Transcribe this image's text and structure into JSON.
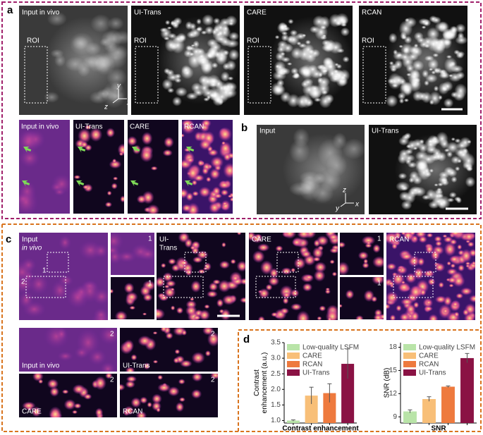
{
  "panel_a": {
    "letter": "a",
    "top_labels": [
      "Input in vivo",
      "UI-Trans",
      "CARE",
      "RCAN"
    ],
    "roi": [
      "ROI",
      "ROI",
      "ROI",
      "ROI"
    ],
    "axes": [
      "y",
      "z",
      "x"
    ],
    "bottom_labels": [
      "Input in vivo",
      "UI-Trans",
      "CARE",
      "RCAN"
    ]
  },
  "panel_b": {
    "letter": "b",
    "labels": [
      "Input",
      "UI-Trans"
    ],
    "axes": [
      "z",
      "y",
      "x"
    ]
  },
  "panel_c": {
    "letter": "c",
    "input_label": [
      "Input",
      "in vivo"
    ],
    "uitrans_label": [
      "UI-",
      "Trans"
    ],
    "care_label": "CARE",
    "rcan_label": "RCAN",
    "roi_numbers": [
      "1",
      "2"
    ],
    "inset_numbers": [
      "1",
      "1",
      "1",
      "1"
    ],
    "strip_labels": [
      "Input in vivo",
      "UI-Trans",
      "CARE",
      "RCAN"
    ],
    "strip_numbers": [
      "2",
      "2",
      "2",
      "2"
    ]
  },
  "panel_d": {
    "letter": "d"
  },
  "chart_data": [
    {
      "type": "bar",
      "y_label": [
        "Contrast",
        "enhancement (a.u.)"
      ],
      "x_label": "Contrast enhancement",
      "categories": [
        "Low-quality LSFM",
        "CARE",
        "RCAN",
        "UI-Trans"
      ],
      "colors": [
        "#b9e4a8",
        "#f8bf78",
        "#ee7a3e",
        "#8a1244"
      ],
      "values": [
        1.0,
        1.8,
        1.88,
        2.82
      ],
      "errors": [
        0.02,
        0.27,
        0.3,
        0.48
      ],
      "ylim": [
        0.92,
        3.5
      ],
      "yticks": [
        {
          "value": 1,
          "label": "1.0"
        },
        1.5,
        {
          "value": 2,
          "label": "2.0"
        },
        2.5,
        {
          "value": 3,
          "label": "3.0"
        },
        3.5
      ]
    },
    {
      "type": "bar",
      "y_label": [
        "SNR (dB)"
      ],
      "x_label": "SNR",
      "categories": [
        "Low-quality LSFM",
        "CARE",
        "RCAN",
        "UI-Trans"
      ],
      "colors": [
        "#b9e4a8",
        "#f8bf78",
        "#ee7a3e",
        "#8a1244"
      ],
      "values": [
        9.7,
        11.3,
        12.9,
        16.6
      ],
      "errors": [
        0.2,
        0.3,
        0.1,
        0.6
      ],
      "ylim": [
        8.2,
        18.6
      ],
      "yticks": [
        9,
        12,
        15,
        18
      ]
    }
  ]
}
